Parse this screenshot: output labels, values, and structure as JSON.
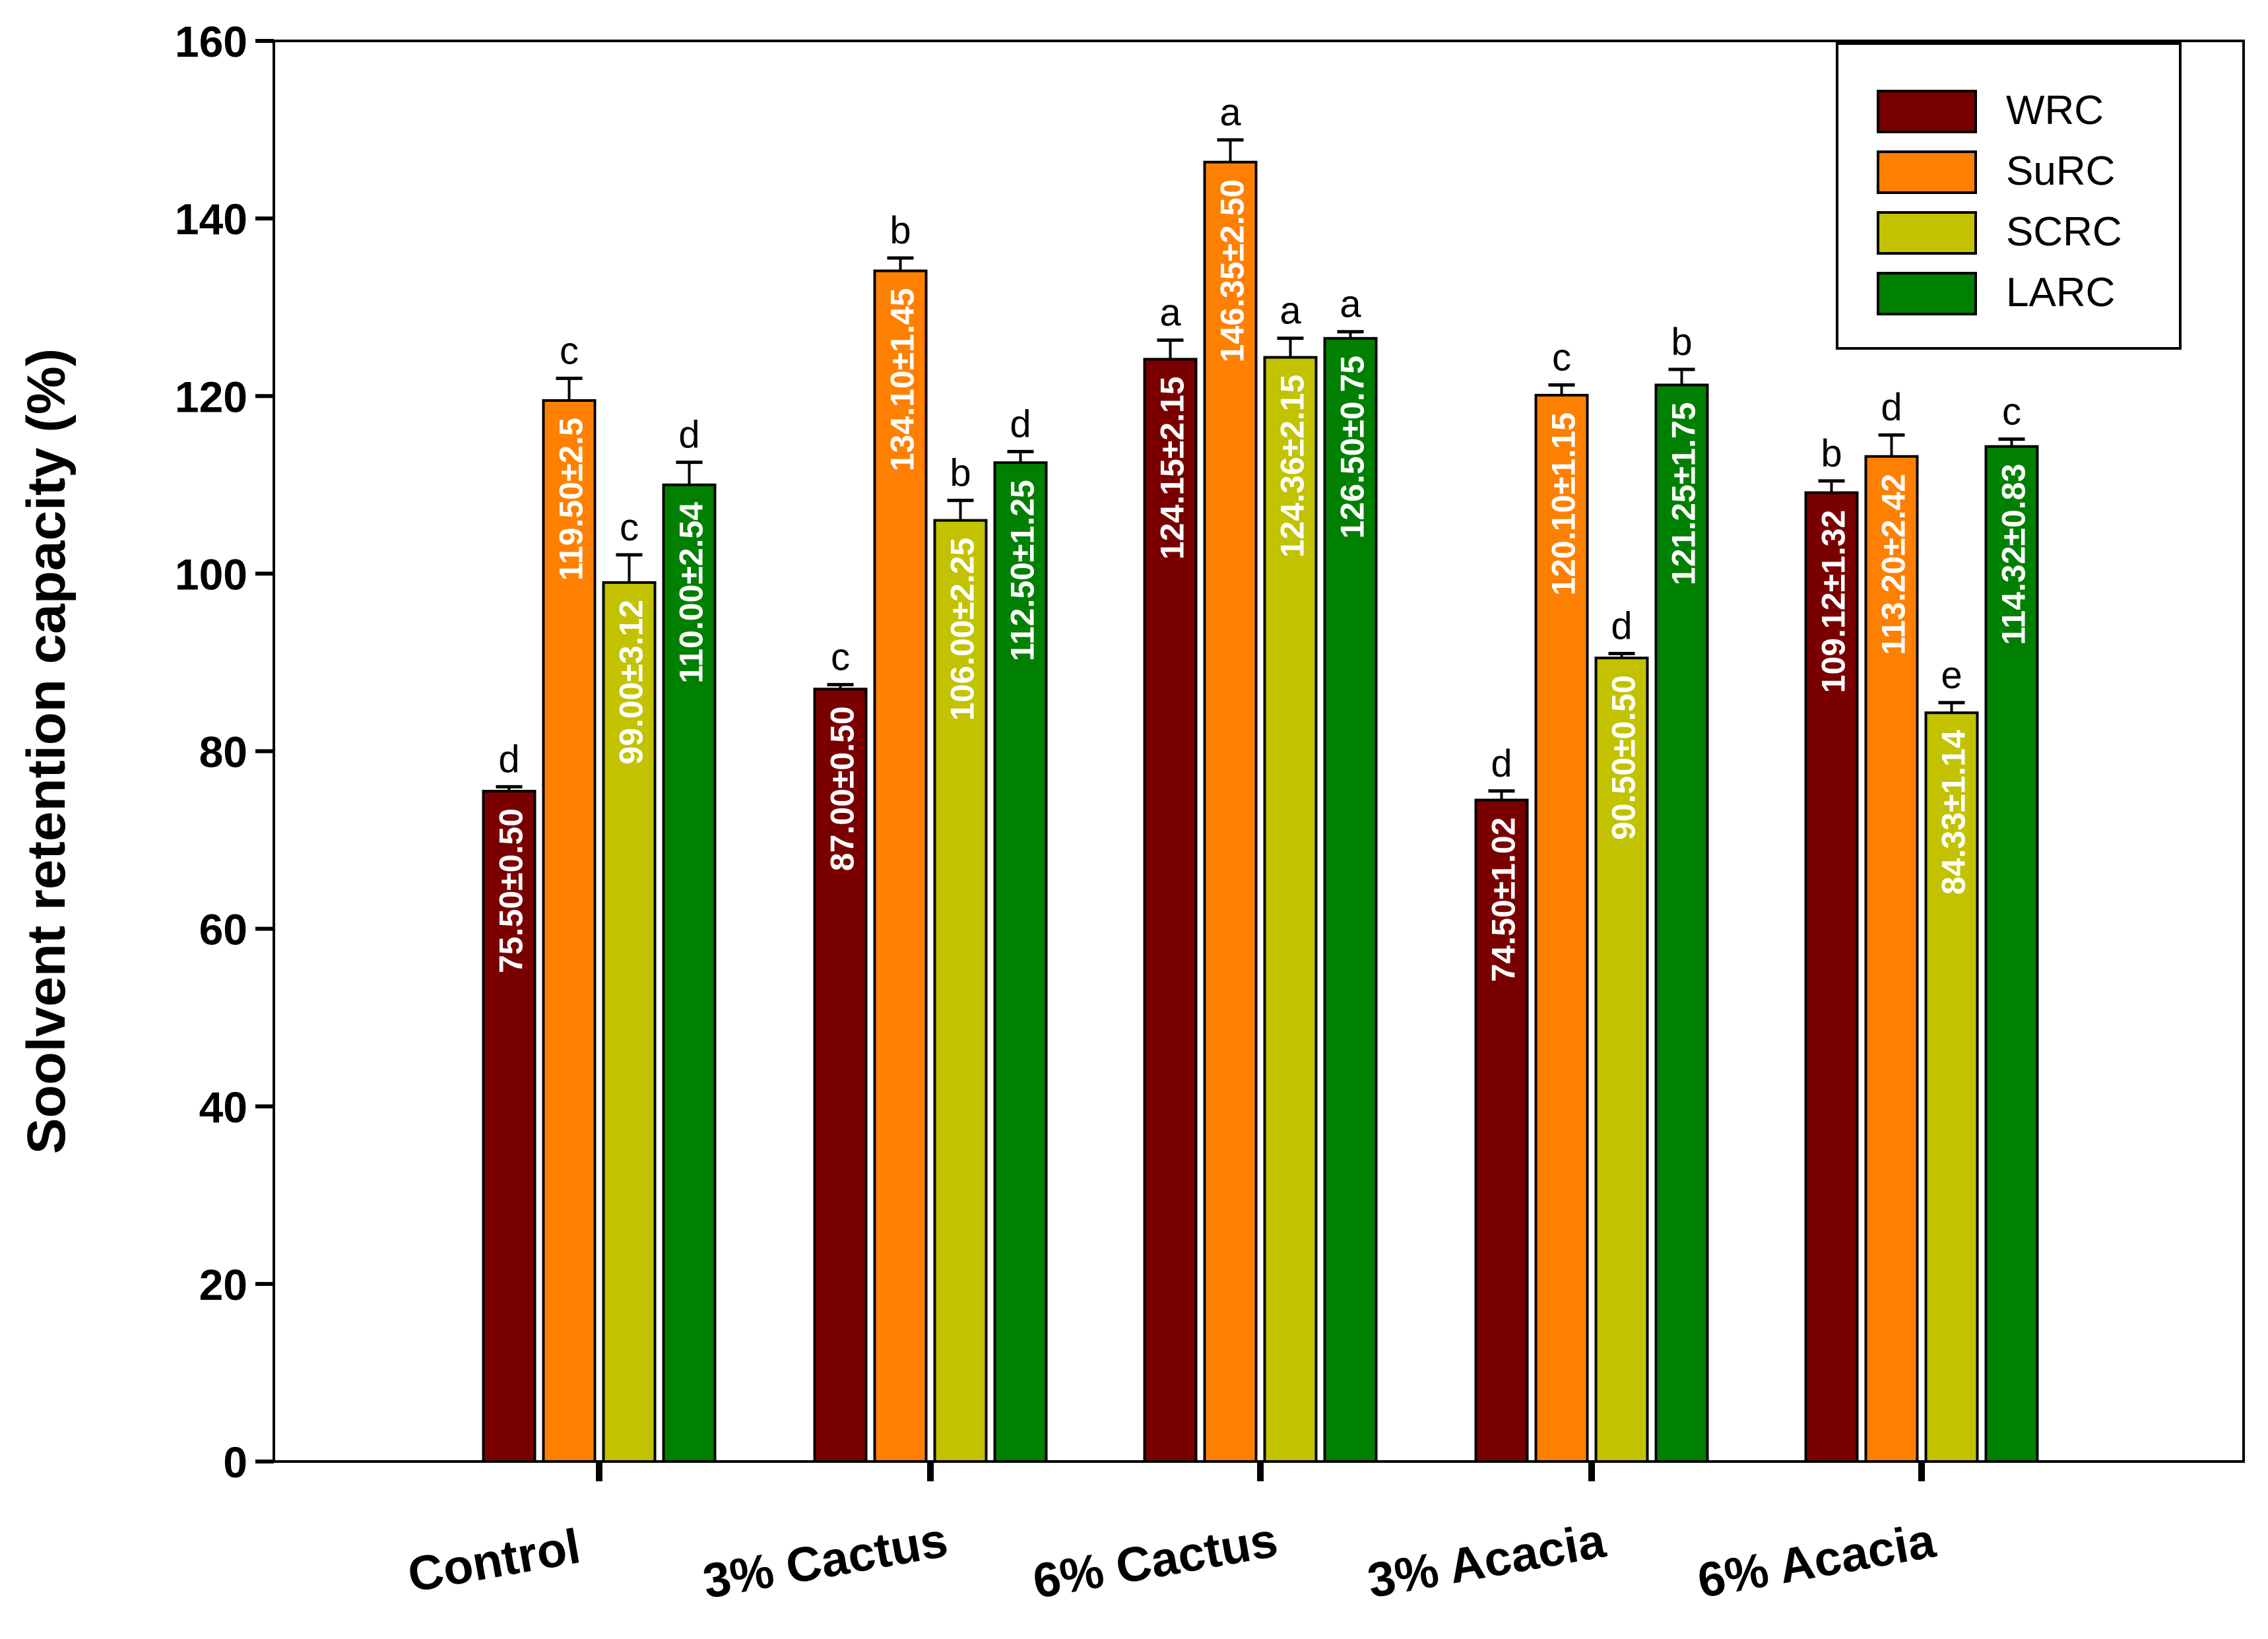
{
  "chart_data": {
    "type": "bar",
    "title": "",
    "xlabel": "",
    "ylabel": "Soolvent retention capacity (%)",
    "ylim": [
      0,
      160
    ],
    "yticks": [
      0,
      20,
      40,
      60,
      80,
      100,
      120,
      140,
      160
    ],
    "grid": false,
    "legend_position": "top-right",
    "categories": [
      "Control",
      "3% Cactus",
      "6% Cactus",
      "3% Acacia",
      "6% Acacia"
    ],
    "series": [
      {
        "name": "WRC",
        "color": "#7a0000",
        "label_color": "#ffffff",
        "values": [
          75.5,
          87.0,
          124.15,
          74.5,
          109.12
        ],
        "errors": [
          0.5,
          0.5,
          2.15,
          1.02,
          1.32
        ],
        "value_labels": [
          "75.50±0.50",
          "87.00±0.50",
          "124.15±2.15",
          "74.50±1.02",
          "109.12±1.32"
        ],
        "letters": [
          "d",
          "c",
          "a",
          "d",
          "b"
        ]
      },
      {
        "name": "SuRC",
        "color": "#ff8000",
        "label_color": "#ffffff",
        "values": [
          119.5,
          134.1,
          146.35,
          120.1,
          113.2
        ],
        "errors": [
          2.5,
          1.45,
          2.5,
          1.15,
          2.42
        ],
        "value_labels": [
          "119.50±2.5",
          "134.10±1.45",
          "146.35±2.50",
          "120.10±1.15",
          "113.20±2.42"
        ],
        "letters": [
          "c",
          "b",
          "a",
          "c",
          "d"
        ]
      },
      {
        "name": "SCRC",
        "color": "#c2c200",
        "label_color": "#ffffff",
        "values": [
          99.0,
          106.0,
          124.36,
          90.5,
          84.33
        ],
        "errors": [
          3.12,
          2.25,
          2.15,
          0.5,
          1.14
        ],
        "value_labels": [
          "99.00±3.12",
          "106.00±2.25",
          "124.36±2.15",
          "90.50±0.50",
          "84.33±1.14"
        ],
        "letters": [
          "c",
          "b",
          "a",
          "d",
          "e"
        ]
      },
      {
        "name": "LARC",
        "color": "#008000",
        "label_color": "#ffffff",
        "values": [
          110.0,
          112.5,
          126.5,
          121.25,
          114.32
        ],
        "errors": [
          2.54,
          1.25,
          0.75,
          1.75,
          0.83
        ],
        "value_labels": [
          "110.00±2.54",
          "112.50±1.25",
          "126.50±0.75",
          "121.25±1.75",
          "114.32±0.83"
        ],
        "letters": [
          "d",
          "d",
          "a",
          "b",
          "c"
        ]
      }
    ]
  }
}
